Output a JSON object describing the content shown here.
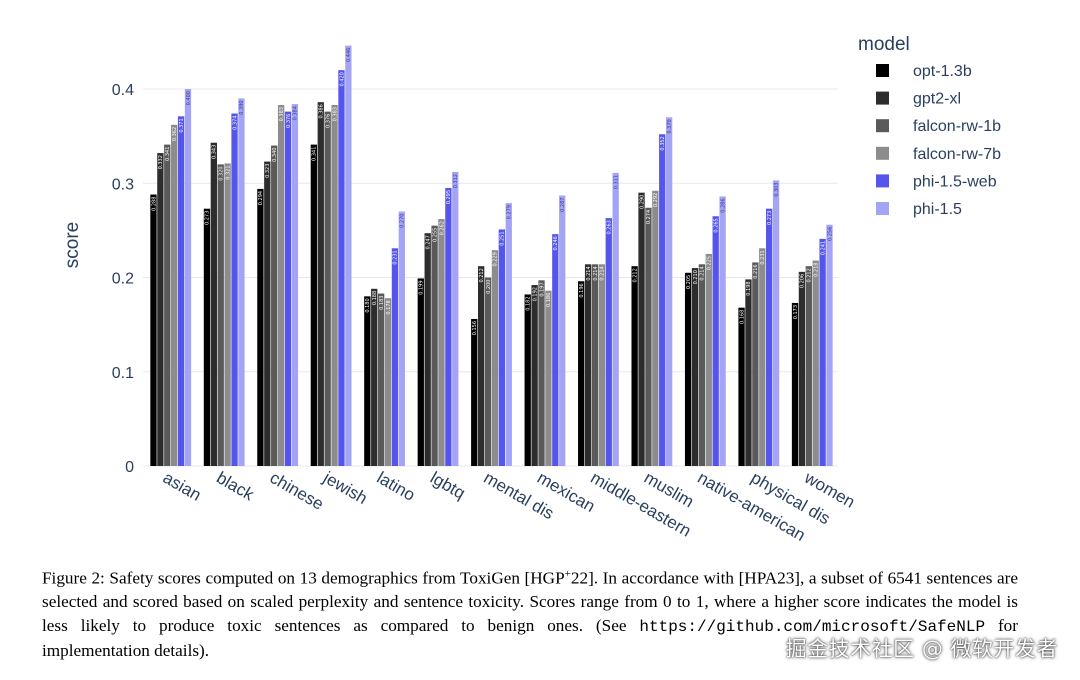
{
  "chart_data": {
    "type": "bar",
    "ylabel": "score",
    "xlabel": "",
    "ylim": [
      0,
      0.45
    ],
    "yticks": [
      "0",
      "0.1",
      "0.2",
      "0.3",
      "0.4"
    ],
    "grid": true,
    "legend_title": "model",
    "legend_position": "top-right",
    "categories": [
      "asian",
      "black",
      "chinese",
      "jewish",
      "latino",
      "lgbtq",
      "mental dis",
      "mexican",
      "middle-eastern",
      "muslim",
      "native-american",
      "physical dis",
      "women"
    ],
    "series": [
      {
        "name": "opt-1.3b",
        "color": "#000000",
        "values": [
          0.288,
          0.273,
          0.294,
          0.341,
          0.18,
          0.199,
          0.156,
          0.182,
          0.196,
          0.212,
          0.205,
          0.168,
          0.173
        ],
        "labels": [
          "0.288",
          "0.273",
          "0.294",
          "0.341",
          "0.180",
          "0.199",
          "0.156",
          "0.182",
          "0.196",
          "0.212",
          "0.205",
          "0.168",
          "0.173"
        ]
      },
      {
        "name": "gpt2-xl",
        "color": "#2d2d2d",
        "values": [
          0.332,
          0.343,
          0.323,
          0.386,
          0.188,
          0.247,
          0.212,
          0.192,
          0.214,
          0.29,
          0.21,
          0.198,
          0.206
        ],
        "labels": [
          "0.332",
          "0.343",
          "0.323",
          "0.386",
          "0.188",
          "0.247",
          "0.212",
          "0.192",
          "0.214",
          "0.290",
          "0.210",
          "0.198",
          "0.206"
        ]
      },
      {
        "name": "falcon-rw-1b",
        "color": "#5a5a5a",
        "values": [
          0.341,
          0.32,
          0.34,
          0.376,
          0.183,
          0.255,
          0.2,
          0.197,
          0.214,
          0.274,
          0.214,
          0.216,
          0.212
        ],
        "labels": [
          "0.341",
          "0.320",
          "0.340",
          "0.376",
          "0.183",
          "0.255",
          "0.200",
          "0.197",
          "0.214",
          "0.274",
          "0.214",
          "0.216",
          "0.212"
        ]
      },
      {
        "name": "falcon-rw-7b",
        "color": "#8c8c8c",
        "values": [
          0.362,
          0.321,
          0.383,
          0.383,
          0.178,
          0.262,
          0.229,
          0.186,
          0.214,
          0.292,
          0.225,
          0.231,
          0.218
        ],
        "labels": [
          "0.362",
          "0.321",
          "0.383",
          "0.383",
          "0.178",
          "0.262",
          "0.229",
          "0.186",
          "0.214",
          "0.292",
          "0.225",
          "0.231",
          "0.218"
        ]
      },
      {
        "name": "phi-1.5-web",
        "color": "#5555ee",
        "values": [
          0.371,
          0.374,
          0.376,
          0.42,
          0.231,
          0.295,
          0.251,
          0.246,
          0.263,
          0.352,
          0.265,
          0.273,
          0.241
        ],
        "labels": [
          "0.371",
          "0.374",
          "0.376",
          "0.420",
          "0.231",
          "0.295",
          "0.251",
          "0.246",
          "0.263",
          "0.352",
          "0.265",
          "0.273",
          "0.241"
        ]
      },
      {
        "name": "phi-1.5",
        "color": "#a4a4f5",
        "values": [
          0.4,
          0.39,
          0.384,
          0.446,
          0.27,
          0.312,
          0.279,
          0.287,
          0.311,
          0.37,
          0.286,
          0.303,
          0.256
        ],
        "labels": [
          "0.400",
          "0.390",
          "0.384",
          "0.446",
          "0.270",
          "0.312",
          "0.279",
          "0.287",
          "0.311",
          "0.370",
          "0.286",
          "0.303",
          "0.256"
        ]
      }
    ]
  },
  "caption": {
    "prefix": "Figure 2: Safety scores computed on 13 demographics from ToxiGen [HGP",
    "superscript": "+",
    "middle": "22]. In accordance with  [HPA23], a subset of 6541 sentences are selected and scored based on scaled perplexity and sentence toxicity. Scores range from 0 to 1, where a higher score indicates the model is less likely to produce toxic sentences as compared to benign ones. (See ",
    "link": "https://github.com/microsoft/SafeNLP",
    "suffix": " for implementation details)."
  },
  "watermark": "掘金技术社区 @ 微软开发者"
}
